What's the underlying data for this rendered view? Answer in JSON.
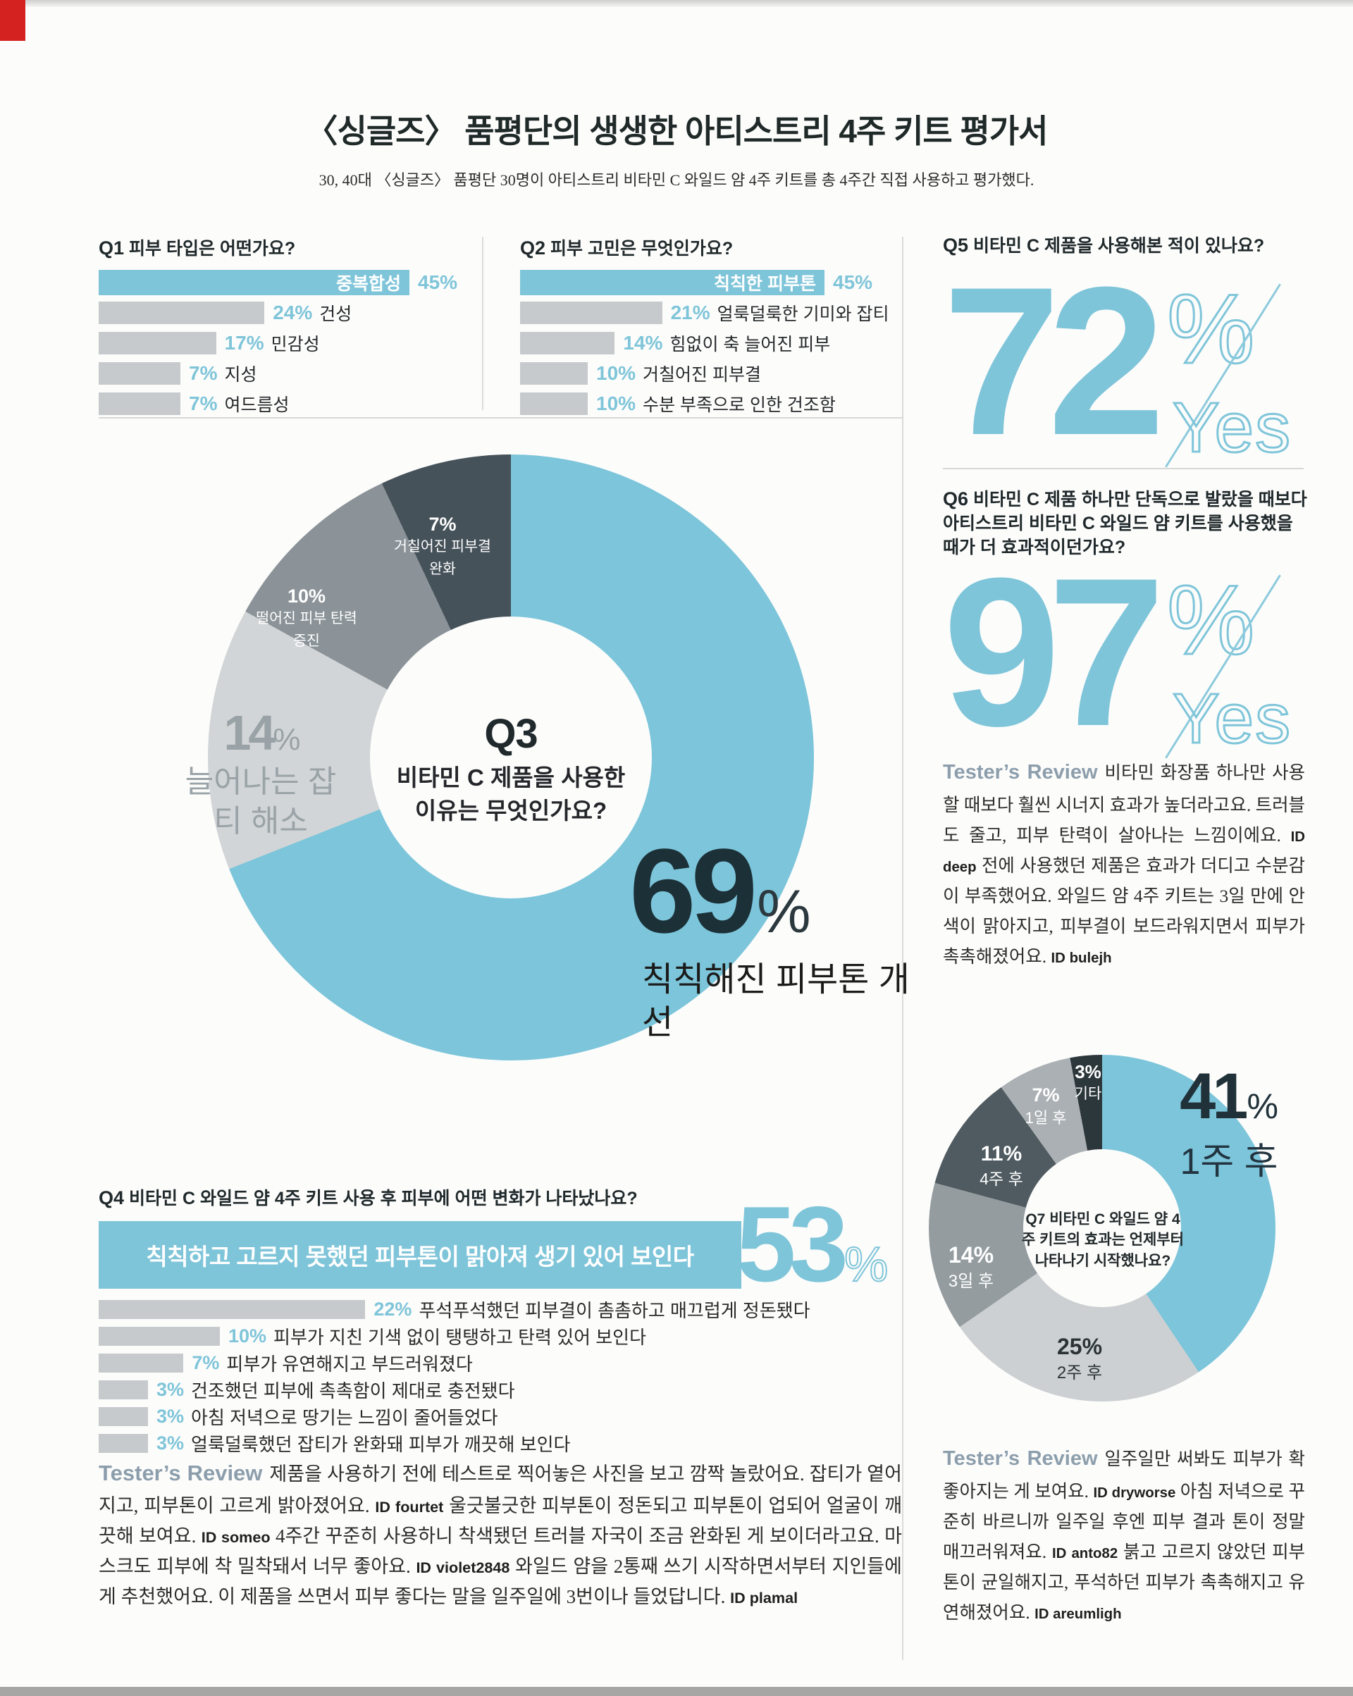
{
  "page": {
    "title": "〈싱글즈〉 품평단의 생생한 아티스트리 4주 키트 평가서",
    "subtitle": "30, 40대 〈싱글즈〉 품평단 30명이 아티스트리 비타민 C 와일드 얌 4주 키트를 총 4주간 직접 사용하고 평가했다."
  },
  "colors": {
    "accent": "#7fc5d9",
    "bar_gray": "#c6cacc",
    "dark_teal": "#1c3037",
    "label_gray": "#99a2a6"
  },
  "chart_data": [
    {
      "id": "q1",
      "type": "bar",
      "title_prefix": "Q1",
      "title": "피부 타입은 어떤가요?",
      "unit": "%",
      "categories": [
        "중복합성",
        "건성",
        "민감성",
        "지성",
        "여드름성"
      ],
      "values": [
        45,
        24,
        17,
        7,
        7
      ],
      "highlight_index": 0,
      "legend_position": "none",
      "grid": false
    },
    {
      "id": "q2",
      "type": "bar",
      "title_prefix": "Q2",
      "title": "피부 고민은 무엇인가요?",
      "unit": "%",
      "categories": [
        "칙칙한 피부톤",
        "얼룩덜룩한 기미와 잡티",
        "힘없이 축 늘어진 피부",
        "거칠어진 피부결",
        "수분 부족으로 인한 건조함"
      ],
      "values": [
        45,
        21,
        14,
        10,
        10
      ],
      "highlight_index": 0,
      "legend_position": "none",
      "grid": false
    },
    {
      "id": "q3",
      "type": "pie",
      "title_prefix": "Q3",
      "title": "비타민 C 제품을 사용한 이유는 무엇인가요?",
      "unit": "%",
      "segments": [
        {
          "label": "칙칙해진 피부톤 개선",
          "value": 69,
          "color": "#7cc5da"
        },
        {
          "label": "늘어나는 잡티 해소",
          "value": 14,
          "color": "#d2d5d7"
        },
        {
          "label": "떨어진 피부 탄력 증진",
          "value": 10,
          "color": "#8b9398"
        },
        {
          "label": "거칠어진 피부결 완화",
          "value": 7,
          "color": "#46525a"
        }
      ]
    },
    {
      "id": "q4",
      "type": "bar",
      "title_prefix": "Q4",
      "title": "비타민 C 와일드 얌 4주 키트 사용 후 피부에 어떤 변화가 나타났나요?",
      "unit": "%",
      "categories": [
        "칙칙하고 고르지 못했던 피부톤이 맑아져 생기 있어 보인다",
        "푸석푸석했던 피부결이 촘촘하고 매끄럽게 정돈됐다",
        "피부가 지친 기색 없이 탱탱하고 탄력 있어 보인다",
        "피부가 유연해지고 부드러워졌다",
        "건조했던 피부에 촉촉함이 제대로 충전됐다",
        "아침 저녁으로 땅기는 느낌이 줄어들었다",
        "얼룩덜룩했던 잡티가 완화돼 피부가 깨끗해 보인다"
      ],
      "values": [
        53,
        22,
        10,
        7,
        3,
        3,
        3
      ],
      "highlight_index": 0,
      "legend_position": "none",
      "grid": false
    },
    {
      "id": "q5",
      "type": "stat",
      "title_prefix": "Q5",
      "title": "비타민 C 제품을 사용해본 적이 있나요?",
      "value": 72,
      "unit": "%",
      "answer": "Yes"
    },
    {
      "id": "q6",
      "type": "stat",
      "title_prefix": "Q6",
      "title": "비타민 C 제품 하나만 단독으로 발랐을 때보다 아티스트리 비타민 C 와일드 얌 키트를 사용했을 때가 더 효과적이던가요?",
      "value": 97,
      "unit": "%",
      "answer": "Yes"
    },
    {
      "id": "q7",
      "type": "pie",
      "title_prefix": "Q7",
      "title": "비타민 C 와일드 얌 4주 키트의 효과는 언제부터 나타나기 시작했나요?",
      "unit": "%",
      "segments": [
        {
          "label": "1주 후",
          "value": 41,
          "color": "#7cc5da"
        },
        {
          "label": "2주 후",
          "value": 25,
          "color": "#ccd0d2"
        },
        {
          "label": "3일 후",
          "value": 14,
          "color": "#949ca0"
        },
        {
          "label": "4주 후",
          "value": 11,
          "color": "#4f5b60"
        },
        {
          "label": "1일 후",
          "value": 7,
          "color": "#aab0b3"
        },
        {
          "label": "기타",
          "value": 3,
          "color": "#2c373c"
        }
      ]
    }
  ],
  "reviews": [
    {
      "heading": "Tester’s Review",
      "segments": [
        {
          "t": "비타민 화장품 하나만 사용할 때보다 훨씬 시너지 효과가 높더라고요. 트러블도 줄고, 피부 탄력이 살아나는 느낌이에요. "
        },
        {
          "id": "ID deep"
        },
        {
          "t": " 전에 사용했던 제품은 효과가 더디고 수분감이 부족했어요. 와일드 얌 4주 키트는 3일 만에 안색이 맑아지고, 피부결이 보드라워지면서 피부가 촉촉해졌어요. "
        },
        {
          "id": "ID bulejh"
        }
      ]
    },
    {
      "heading": "Tester’s Review",
      "segments": [
        {
          "t": "제품을 사용하기 전에 테스트로 찍어놓은 사진을 보고 깜짝 놀랐어요. 잡티가 옅어지고, 피부톤이 고르게 밝아졌어요. "
        },
        {
          "id": "ID fourtet"
        },
        {
          "t": " 울긋불긋한 피부톤이 정돈되고 피부톤이 업되어 얼굴이 깨끗해 보여요. "
        },
        {
          "id": "ID someo"
        },
        {
          "t": " 4주간 꾸준히 사용하니 착색됐던 트러블 자국이 조금 완화된 게 보이더라고요. 마스크도 피부에 착 밀착돼서 너무 좋아요. "
        },
        {
          "id": "ID violet2848"
        },
        {
          "t": " 와일드 얌을 2통째 쓰기 시작하면서부터 지인들에게 추천했어요. 이 제품을 쓰면서 피부 좋다는 말을 일주일에 3번이나 들었답니다. "
        },
        {
          "id": "ID plamal"
        }
      ]
    },
    {
      "heading": "Tester’s Review",
      "segments": [
        {
          "t": "일주일만 써봐도 피부가 확 좋아지는 게 보여요. "
        },
        {
          "id": "ID dryworse"
        },
        {
          "t": " 아침 저녁으로 꾸준히 바르니까 일주일 후엔 피부 결과 톤이 정말 매끄러워져요. "
        },
        {
          "id": "ID anto82"
        },
        {
          "t": " 붉고 고르지 않았던 피부톤이 균일해지고, 푸석하던 피부가 촉촉해지고 유연해졌어요. "
        },
        {
          "id": "ID areumligh"
        }
      ]
    }
  ]
}
